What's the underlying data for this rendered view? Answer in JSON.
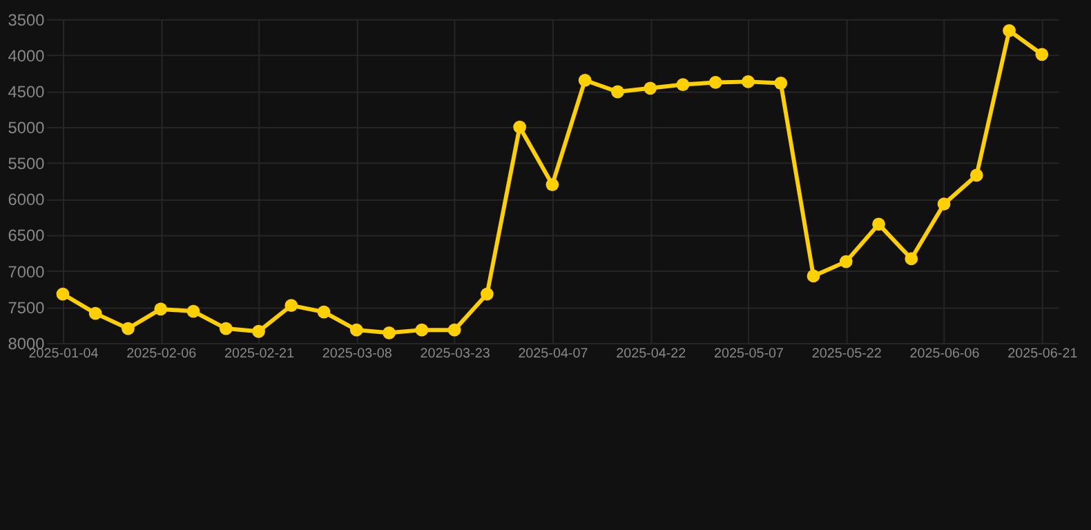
{
  "chart_data": {
    "type": "line",
    "categories": [
      "2025-01-04",
      null,
      null,
      "2025-02-06",
      null,
      null,
      "2025-02-21",
      null,
      null,
      "2025-03-08",
      null,
      null,
      "2025-03-23",
      null,
      null,
      "2025-04-07",
      null,
      null,
      "2025-04-22",
      null,
      null,
      "2025-05-07",
      null,
      null,
      "2025-05-22",
      null,
      null,
      "2025-06-06",
      null,
      null,
      "2025-06-21"
    ],
    "series": [
      {
        "color": "#ffd000",
        "values": [
          7320,
          7590,
          7800,
          7530,
          7560,
          7800,
          7840,
          7480,
          7570,
          7820,
          7860,
          7820,
          7820,
          7320,
          5000,
          5800,
          4350,
          4510,
          4460,
          4410,
          4380,
          4370,
          4390,
          7070,
          6870,
          6350,
          6830,
          6070,
          5670,
          3660,
          3990
        ]
      }
    ],
    "ylim": [
      8000,
      3500
    ],
    "yticks": [
      3500,
      4000,
      4500,
      5000,
      5500,
      6000,
      6500,
      7000,
      7500,
      8000
    ],
    "grid": true,
    "marker": "circle",
    "line_style": "solid"
  }
}
